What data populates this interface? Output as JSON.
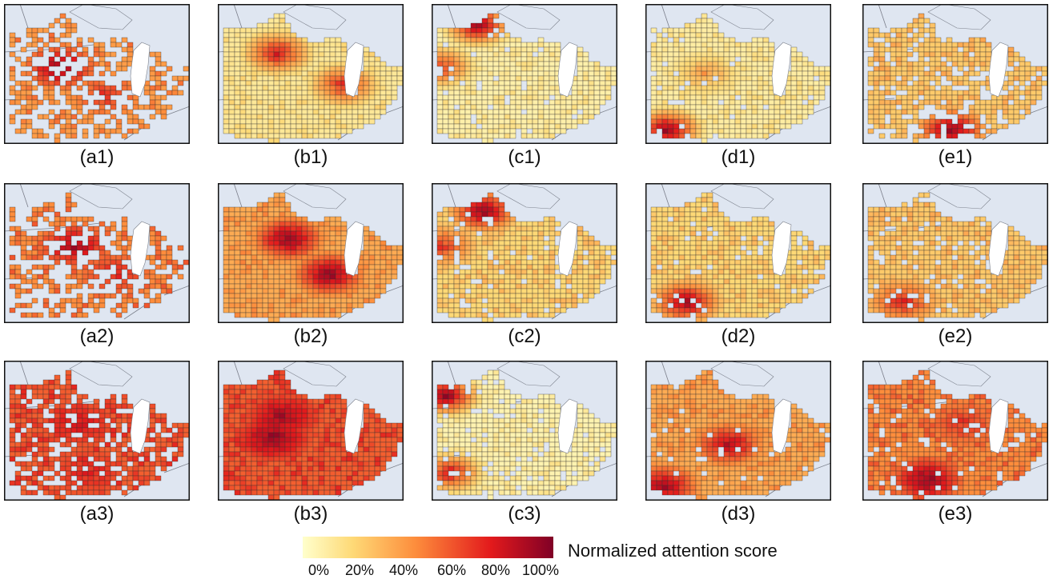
{
  "legend": {
    "title": "Normalized attention score",
    "ticks": [
      "0%",
      "20%",
      "40%",
      "60%",
      "80%",
      "100%"
    ],
    "colors": [
      "#ffffcc",
      "#fed976",
      "#fd8d3c",
      "#e31a1c",
      "#800026"
    ]
  },
  "panels": [
    {
      "id": "a1",
      "label": "(a1)",
      "level": 0.45,
      "coverage": 0.55,
      "hotspots": [
        [
          0.3,
          0.45,
          0.95
        ],
        [
          0.55,
          0.65,
          0.7
        ]
      ]
    },
    {
      "id": "b1",
      "label": "(b1)",
      "level": 0.15,
      "coverage": 1.0,
      "hotspots": [
        [
          0.32,
          0.35,
          0.8
        ],
        [
          0.68,
          0.58,
          0.75
        ]
      ]
    },
    {
      "id": "c1",
      "label": "(c1)",
      "level": 0.1,
      "coverage": 0.95,
      "hotspots": [
        [
          0.25,
          0.15,
          0.95
        ],
        [
          0.05,
          0.45,
          0.7
        ]
      ]
    },
    {
      "id": "d1",
      "label": "(d1)",
      "level": 0.12,
      "coverage": 0.95,
      "hotspots": [
        [
          0.12,
          0.9,
          0.95
        ],
        [
          0.32,
          0.5,
          0.45
        ]
      ]
    },
    {
      "id": "e1",
      "label": "(e1)",
      "level": 0.3,
      "coverage": 0.75,
      "hotspots": [
        [
          0.48,
          0.9,
          0.95
        ]
      ]
    },
    {
      "id": "a2",
      "label": "(a2)",
      "level": 0.5,
      "coverage": 0.55,
      "hotspots": [
        [
          0.38,
          0.45,
          0.9
        ],
        [
          0.6,
          0.65,
          0.75
        ]
      ]
    },
    {
      "id": "b2",
      "label": "(b2)",
      "level": 0.4,
      "coverage": 1.0,
      "hotspots": [
        [
          0.38,
          0.4,
          0.95
        ],
        [
          0.6,
          0.65,
          0.95
        ]
      ]
    },
    {
      "id": "c2",
      "label": "(c2)",
      "level": 0.25,
      "coverage": 0.9,
      "hotspots": [
        [
          0.28,
          0.2,
          0.95
        ],
        [
          0.05,
          0.45,
          0.7
        ]
      ]
    },
    {
      "id": "d2",
      "label": "(d2)",
      "level": 0.25,
      "coverage": 0.95,
      "hotspots": [
        [
          0.22,
          0.85,
          0.9
        ]
      ]
    },
    {
      "id": "e2",
      "label": "(e2)",
      "level": 0.3,
      "coverage": 0.9,
      "hotspots": [
        [
          0.22,
          0.85,
          0.75
        ]
      ]
    },
    {
      "id": "a3",
      "label": "(a3)",
      "level": 0.6,
      "coverage": 0.75,
      "hotspots": [
        [
          0.4,
          0.45,
          0.8
        ],
        [
          0.45,
          0.8,
          0.75
        ]
      ]
    },
    {
      "id": "b3",
      "label": "(b3)",
      "level": 0.6,
      "coverage": 1.0,
      "hotspots": [
        [
          0.3,
          0.55,
          0.95
        ],
        [
          0.35,
          0.4,
          0.9
        ]
      ]
    },
    {
      "id": "c3",
      "label": "(c3)",
      "level": 0.08,
      "coverage": 0.9,
      "hotspots": [
        [
          0.08,
          0.25,
          0.95
        ],
        [
          0.1,
          0.8,
          0.8
        ]
      ]
    },
    {
      "id": "d3",
      "label": "(d3)",
      "level": 0.4,
      "coverage": 0.95,
      "hotspots": [
        [
          0.45,
          0.6,
          0.85
        ],
        [
          0.1,
          0.9,
          0.9
        ]
      ]
    },
    {
      "id": "e3",
      "label": "(e3)",
      "level": 0.5,
      "coverage": 0.9,
      "hotspots": [
        [
          0.35,
          0.85,
          0.95
        ],
        [
          0.55,
          0.45,
          0.7
        ]
      ]
    }
  ]
}
